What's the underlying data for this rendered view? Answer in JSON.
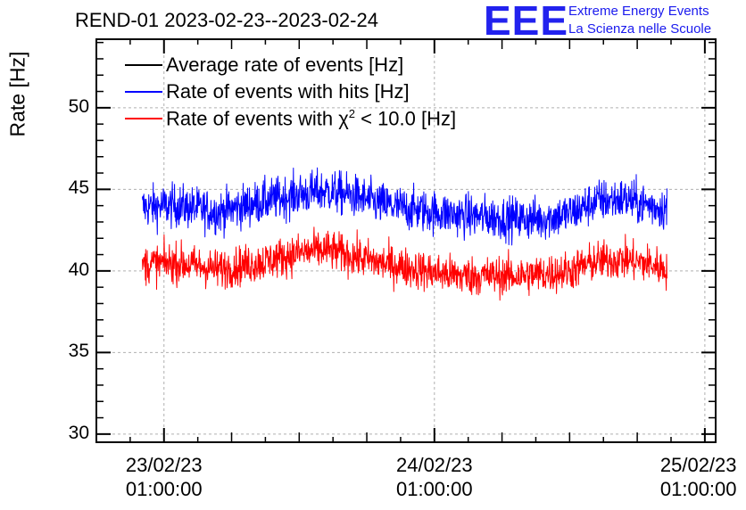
{
  "header": {
    "title": "REND-01 2023-02-23--2023-02-24",
    "logo_text": "EEE",
    "logo_line1": "Extreme Energy Events",
    "logo_line2": "La Scienza nelle Scuole"
  },
  "chart_data": {
    "type": "line",
    "title": "REND-01 2023-02-23--2023-02-24",
    "xlabel": "",
    "ylabel": "Rate [Hz]",
    "ylim": [
      29.5,
      54.2
    ],
    "xlim": [
      -0.25,
      2.04
    ],
    "yticks": [
      {
        "value": 30,
        "label": "30"
      },
      {
        "value": 35,
        "label": "35"
      },
      {
        "value": 40,
        "label": "40"
      },
      {
        "value": 45,
        "label": "45"
      },
      {
        "value": 50,
        "label": "50"
      }
    ],
    "xticks": [
      {
        "value": 0,
        "line1": "23/02/23",
        "line2": "01:00:00"
      },
      {
        "value": 1,
        "line1": "24/02/23",
        "line2": "01:00:00"
      },
      {
        "value": 2,
        "line1": "25/02/23",
        "line2": "01:00:00"
      }
    ],
    "grid": true,
    "legend": {
      "position": "top-left"
    },
    "series": [
      {
        "name": "Average rate of events [Hz]",
        "color": "#000000",
        "x": [],
        "values": []
      },
      {
        "name": "Rate of events with hits [Hz]",
        "color": "#0000ff",
        "x_start": -0.08,
        "x_end": 1.86,
        "noise_amplitude": 1.2,
        "x": [
          -0.08,
          0.05,
          0.2,
          0.35,
          0.5,
          0.6,
          0.7,
          0.8,
          0.9,
          1.0,
          1.1,
          1.2,
          1.3,
          1.4,
          1.5,
          1.6,
          1.7,
          1.8,
          1.86
        ],
        "values": [
          43.9,
          44.0,
          43.6,
          44.2,
          44.7,
          44.9,
          44.6,
          44.1,
          43.8,
          43.6,
          43.4,
          43.3,
          43.2,
          43.2,
          43.5,
          44.3,
          44.4,
          44.0,
          43.8
        ]
      },
      {
        "name": "Rate of events with χ² < 10.0 [Hz]",
        "legend_prefix": "Rate of events with χ",
        "legend_sup": "2",
        "legend_suffix": " < 10.0 [Hz]",
        "color": "#ff0000",
        "x_start": -0.08,
        "x_end": 1.86,
        "noise_amplitude": 1.1,
        "x": [
          -0.08,
          0.05,
          0.2,
          0.35,
          0.5,
          0.6,
          0.7,
          0.8,
          0.9,
          1.0,
          1.1,
          1.2,
          1.3,
          1.4,
          1.5,
          1.6,
          1.7,
          1.8,
          1.86
        ],
        "values": [
          40.4,
          40.5,
          40.1,
          40.5,
          41.1,
          41.3,
          40.9,
          40.5,
          40.2,
          39.9,
          39.7,
          39.7,
          39.7,
          39.8,
          40.0,
          40.6,
          40.7,
          40.4,
          40.1
        ]
      }
    ]
  }
}
